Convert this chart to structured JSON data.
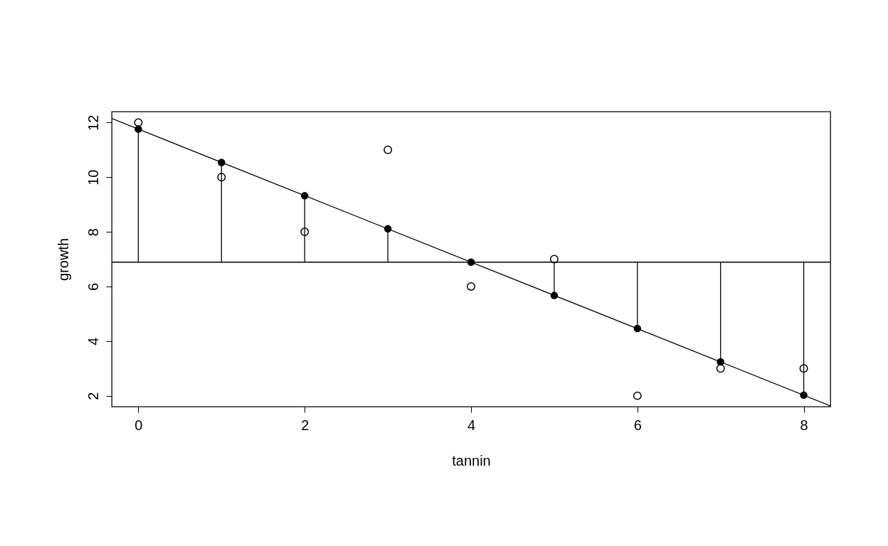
{
  "chart_data": {
    "type": "scatter",
    "xlabel": "tannin",
    "ylabel": "growth",
    "x": [
      0,
      1,
      2,
      3,
      4,
      5,
      6,
      7,
      8
    ],
    "series": [
      {
        "marker": "circle",
        "color": "#000000",
        "values": [
          12,
          10,
          8,
          11,
          6,
          7,
          2,
          3,
          3
        ]
      },
      {
        "marker": "circle",
        "color": "#000000",
        "values": [
          11.76,
          10.54,
          9.32,
          8.11,
          6.89,
          5.67,
          4.46,
          3.24,
          2.02
        ],
        "errors": [
          [
            6.89,
            11.76
          ],
          [
            6.89,
            10.54
          ],
          [
            6.89,
            9.32
          ],
          [
            6.89,
            8.11
          ],
          null,
          [
            5.67,
            6.89
          ],
          [
            4.46,
            6.89
          ],
          [
            3.24,
            6.89
          ],
          [
            2.02,
            6.89
          ]
        ]
      },
      {
        "type": "line",
        "color": "#000000",
        "x": [
          -0.32,
          8.32
        ],
        "values": [
          12.15,
          1.63
        ]
      }
    ],
    "ref_lines": [
      {
        "axis": "y",
        "value": 6.89,
        "color": "#000000"
      }
    ],
    "xlim": [
      -0.32,
      8.32
    ],
    "ylim": [
      1.6,
      12.4
    ],
    "xticks": [
      0,
      2,
      4,
      6,
      8
    ],
    "yticks": [
      2,
      4,
      6,
      8,
      10,
      12
    ],
    "grid": false
  }
}
